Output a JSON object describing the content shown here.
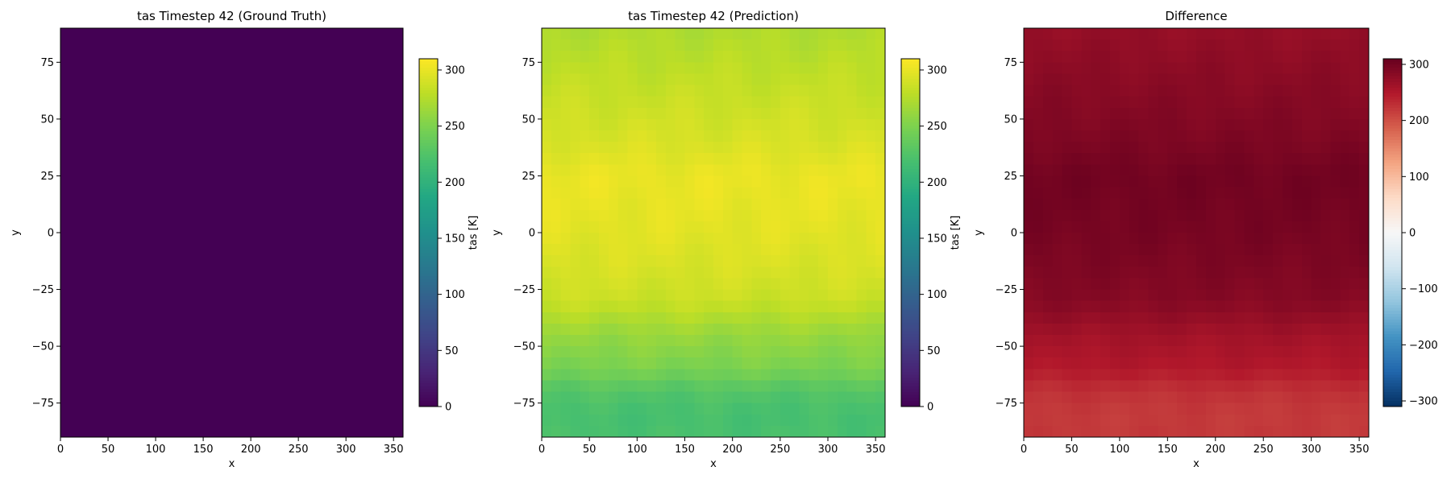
{
  "figure": {
    "background": "#ffffff"
  },
  "chart_data": [
    {
      "type": "heatmap",
      "title": "tas Timestep 42 (Ground Truth)",
      "xlabel": "x",
      "ylabel": "y",
      "xlim": [
        0,
        360
      ],
      "ylim": [
        -90,
        90
      ],
      "xticks": [
        0,
        50,
        100,
        150,
        200,
        250,
        300,
        350
      ],
      "yticks": [
        -75,
        -50,
        -25,
        0,
        25,
        50,
        75
      ],
      "colormap": "viridis",
      "colorbar": {
        "label": "tas [K]",
        "range": [
          0,
          310
        ],
        "ticks": [
          0,
          50,
          100,
          150,
          200,
          250,
          300
        ]
      },
      "field": {
        "kind": "uniform",
        "value": 0
      }
    },
    {
      "type": "heatmap",
      "title": "tas Timestep 42 (Prediction)",
      "xlabel": "x",
      "ylabel": "y",
      "xlim": [
        0,
        360
      ],
      "ylim": [
        -90,
        90
      ],
      "xticks": [
        0,
        50,
        100,
        150,
        200,
        250,
        300,
        350
      ],
      "yticks": [
        -75,
        -50,
        -25,
        0,
        25,
        50,
        75
      ],
      "colormap": "viridis",
      "colorbar": {
        "label": "tas [K]",
        "range": [
          0,
          310
        ],
        "ticks": [
          0,
          50,
          100,
          150,
          200,
          250,
          300
        ]
      },
      "field": {
        "kind": "latitude_profile",
        "lat_points": [
          -90,
          -80,
          -70,
          -60,
          -45,
          -30,
          -15,
          0,
          15,
          25,
          40,
          55,
          70,
          80,
          90
        ],
        "values": [
          220,
          218,
          226,
          248,
          262,
          285,
          292,
          297,
          300,
          301,
          292,
          286,
          280,
          276,
          272
        ]
      }
    },
    {
      "type": "heatmap",
      "title": "Difference",
      "xlabel": "x",
      "ylabel": "y",
      "xlim": [
        0,
        360
      ],
      "ylim": [
        -90,
        90
      ],
      "xticks": [
        0,
        50,
        100,
        150,
        200,
        250,
        300,
        350
      ],
      "yticks": [
        -75,
        -50,
        -25,
        0,
        25,
        50,
        75
      ],
      "colormap": "RdBu_r",
      "colorbar": {
        "label": "",
        "range": [
          -310,
          310
        ],
        "ticks": [
          -300,
          -200,
          -100,
          0,
          100,
          200,
          300
        ]
      },
      "field": {
        "kind": "latitude_profile",
        "lat_points": [
          -90,
          -80,
          -70,
          -60,
          -45,
          -30,
          -15,
          0,
          15,
          25,
          40,
          55,
          70,
          80,
          90
        ],
        "values": [
          220,
          218,
          226,
          248,
          262,
          285,
          292,
          297,
          300,
          301,
          292,
          286,
          280,
          276,
          272
        ]
      }
    }
  ]
}
